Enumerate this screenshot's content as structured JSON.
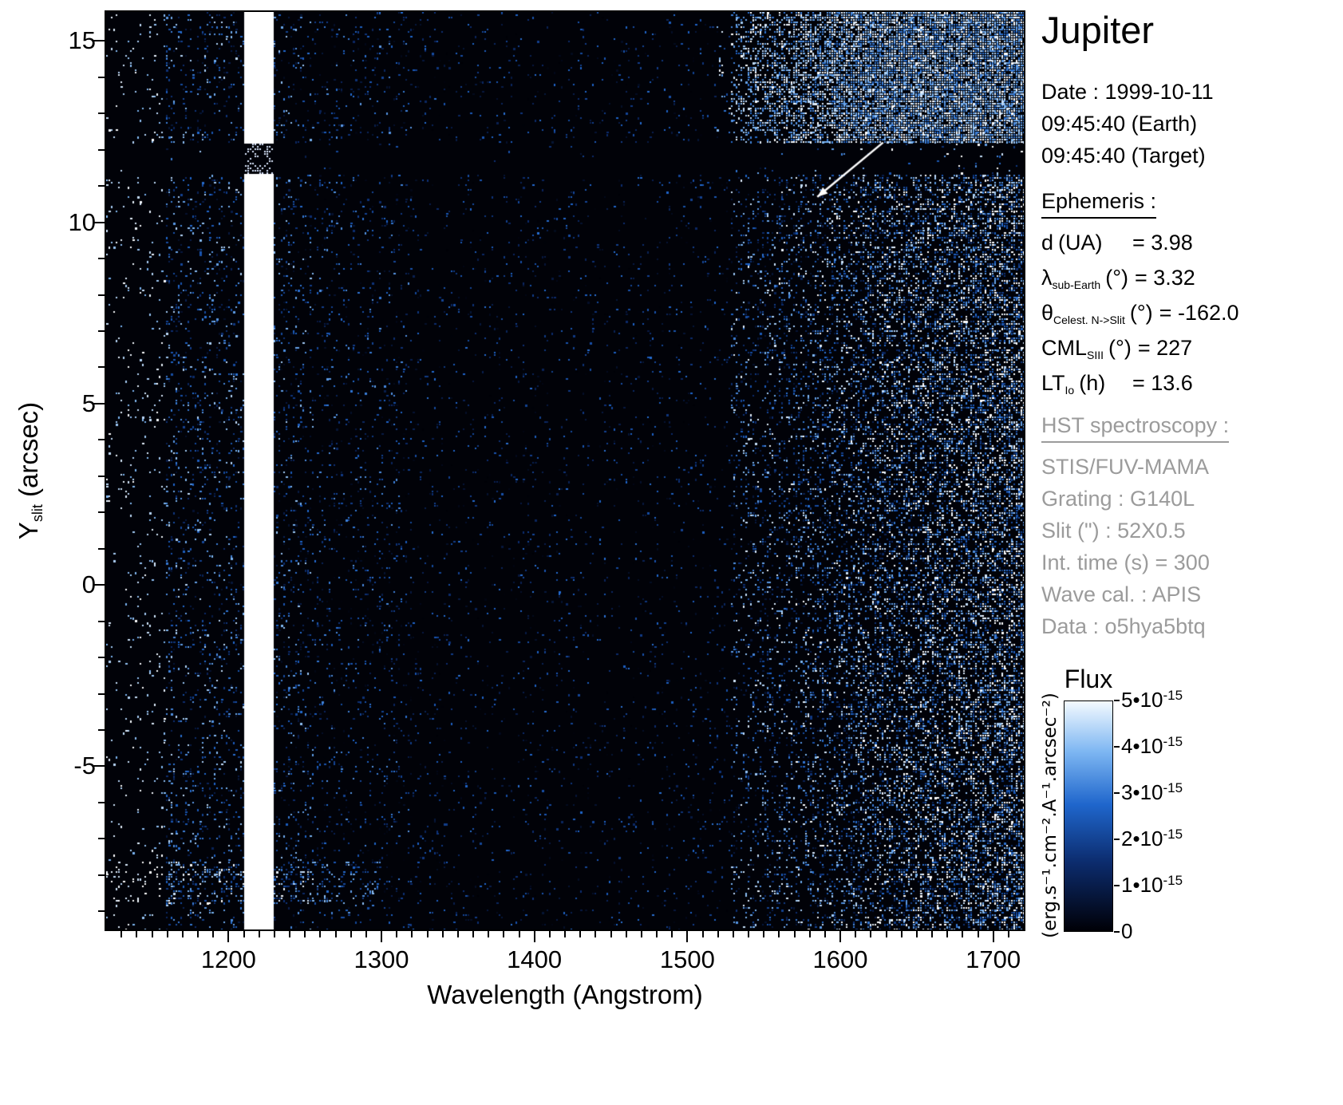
{
  "title": "Jupiter",
  "observation": {
    "date": "Date : 1999-10-11",
    "time_earth": "09:45:40 (Earth)",
    "time_target": "09:45:40 (Target)"
  },
  "ephemeris": {
    "heading": "Ephemeris :",
    "rows": [
      {
        "main": "d",
        "sub": "",
        "unit": "(UA)",
        "value": "= 3.98"
      },
      {
        "main": "λ",
        "sub": "sub-Earth",
        "unit": "(°)",
        "value": "= 3.32"
      },
      {
        "main": "θ",
        "sub": "Celest. N->Slit",
        "unit": "(°)",
        "value": "= -162.0"
      },
      {
        "main": "CML",
        "sub": "SIII",
        "unit": "(°)",
        "value": "= 227"
      },
      {
        "main": "LT",
        "sub": "Io",
        "unit": "(h)",
        "value": "= 13.6"
      }
    ]
  },
  "hst": {
    "heading": "HST spectroscopy :",
    "lines": [
      "STIS/FUV-MAMA",
      "Grating : G140L",
      "Slit (\") : 52X0.5",
      "Int. time (s) = 300",
      "Wave cal. : APIS",
      "Data : o5hya5btq"
    ]
  },
  "colorbar": {
    "title": "Flux",
    "units": "(erg.s⁻¹.cm⁻².A⁻¹.arcsec⁻²)",
    "ticks": [
      {
        "base": "5•10",
        "exp": "-15"
      },
      {
        "base": "4•10",
        "exp": "-15"
      },
      {
        "base": "3•10",
        "exp": "-15"
      },
      {
        "base": "2•10",
        "exp": "-15"
      },
      {
        "base": "1•10",
        "exp": "-15"
      },
      {
        "base": "0",
        "exp": ""
      }
    ]
  },
  "axes": {
    "x_label": "Wavelength (Angstrom)",
    "y_label_main": "Y",
    "y_label_sub": "slit",
    "y_label_rest": "(arcsec)"
  },
  "chart_data": {
    "type": "heatmap",
    "title": "Jupiter",
    "xlabel": "Wavelength (Angstrom)",
    "ylabel": "Y slit (arcsec)",
    "xlim": [
      1120,
      1720
    ],
    "ylim": [
      -9.5,
      15.8
    ],
    "x_ticks": [
      1200,
      1300,
      1400,
      1500,
      1600,
      1700
    ],
    "x_minor_step": 10,
    "y_ticks": [
      -5,
      0,
      5,
      10,
      15
    ],
    "y_minor_step": 1,
    "flux_min": 0,
    "flux_max": 5e-15,
    "flux_tick_step": 1e-15,
    "legend_position": "right",
    "grid": false,
    "colormap_stops": [
      [
        0.0,
        0,
        0,
        6
      ],
      [
        0.3,
        12,
        44,
        110
      ],
      [
        0.55,
        31,
        102,
        204
      ],
      [
        0.78,
        125,
        182,
        242
      ],
      [
        1.0,
        255,
        255,
        255
      ]
    ],
    "features": {
      "geocoronal_lyman_alpha_stripe": {
        "x0": 1210,
        "x1": 1229
      },
      "dark_horizontal_band": {
        "y0": 11.35,
        "y1": 12.2
      },
      "blue_emission_band": {
        "x0": 1158,
        "x1": 1210
      },
      "left_sparse_region_end": 1158,
      "bright_fuv_region_start": 1527,
      "bottom_enhancement": {
        "y0": -8.8,
        "y1": -7.6,
        "x_max": 1300
      },
      "trail": {
        "lam0": 1585,
        "y0": 10.7,
        "lam1": 1628,
        "y1": 12.2
      }
    }
  }
}
